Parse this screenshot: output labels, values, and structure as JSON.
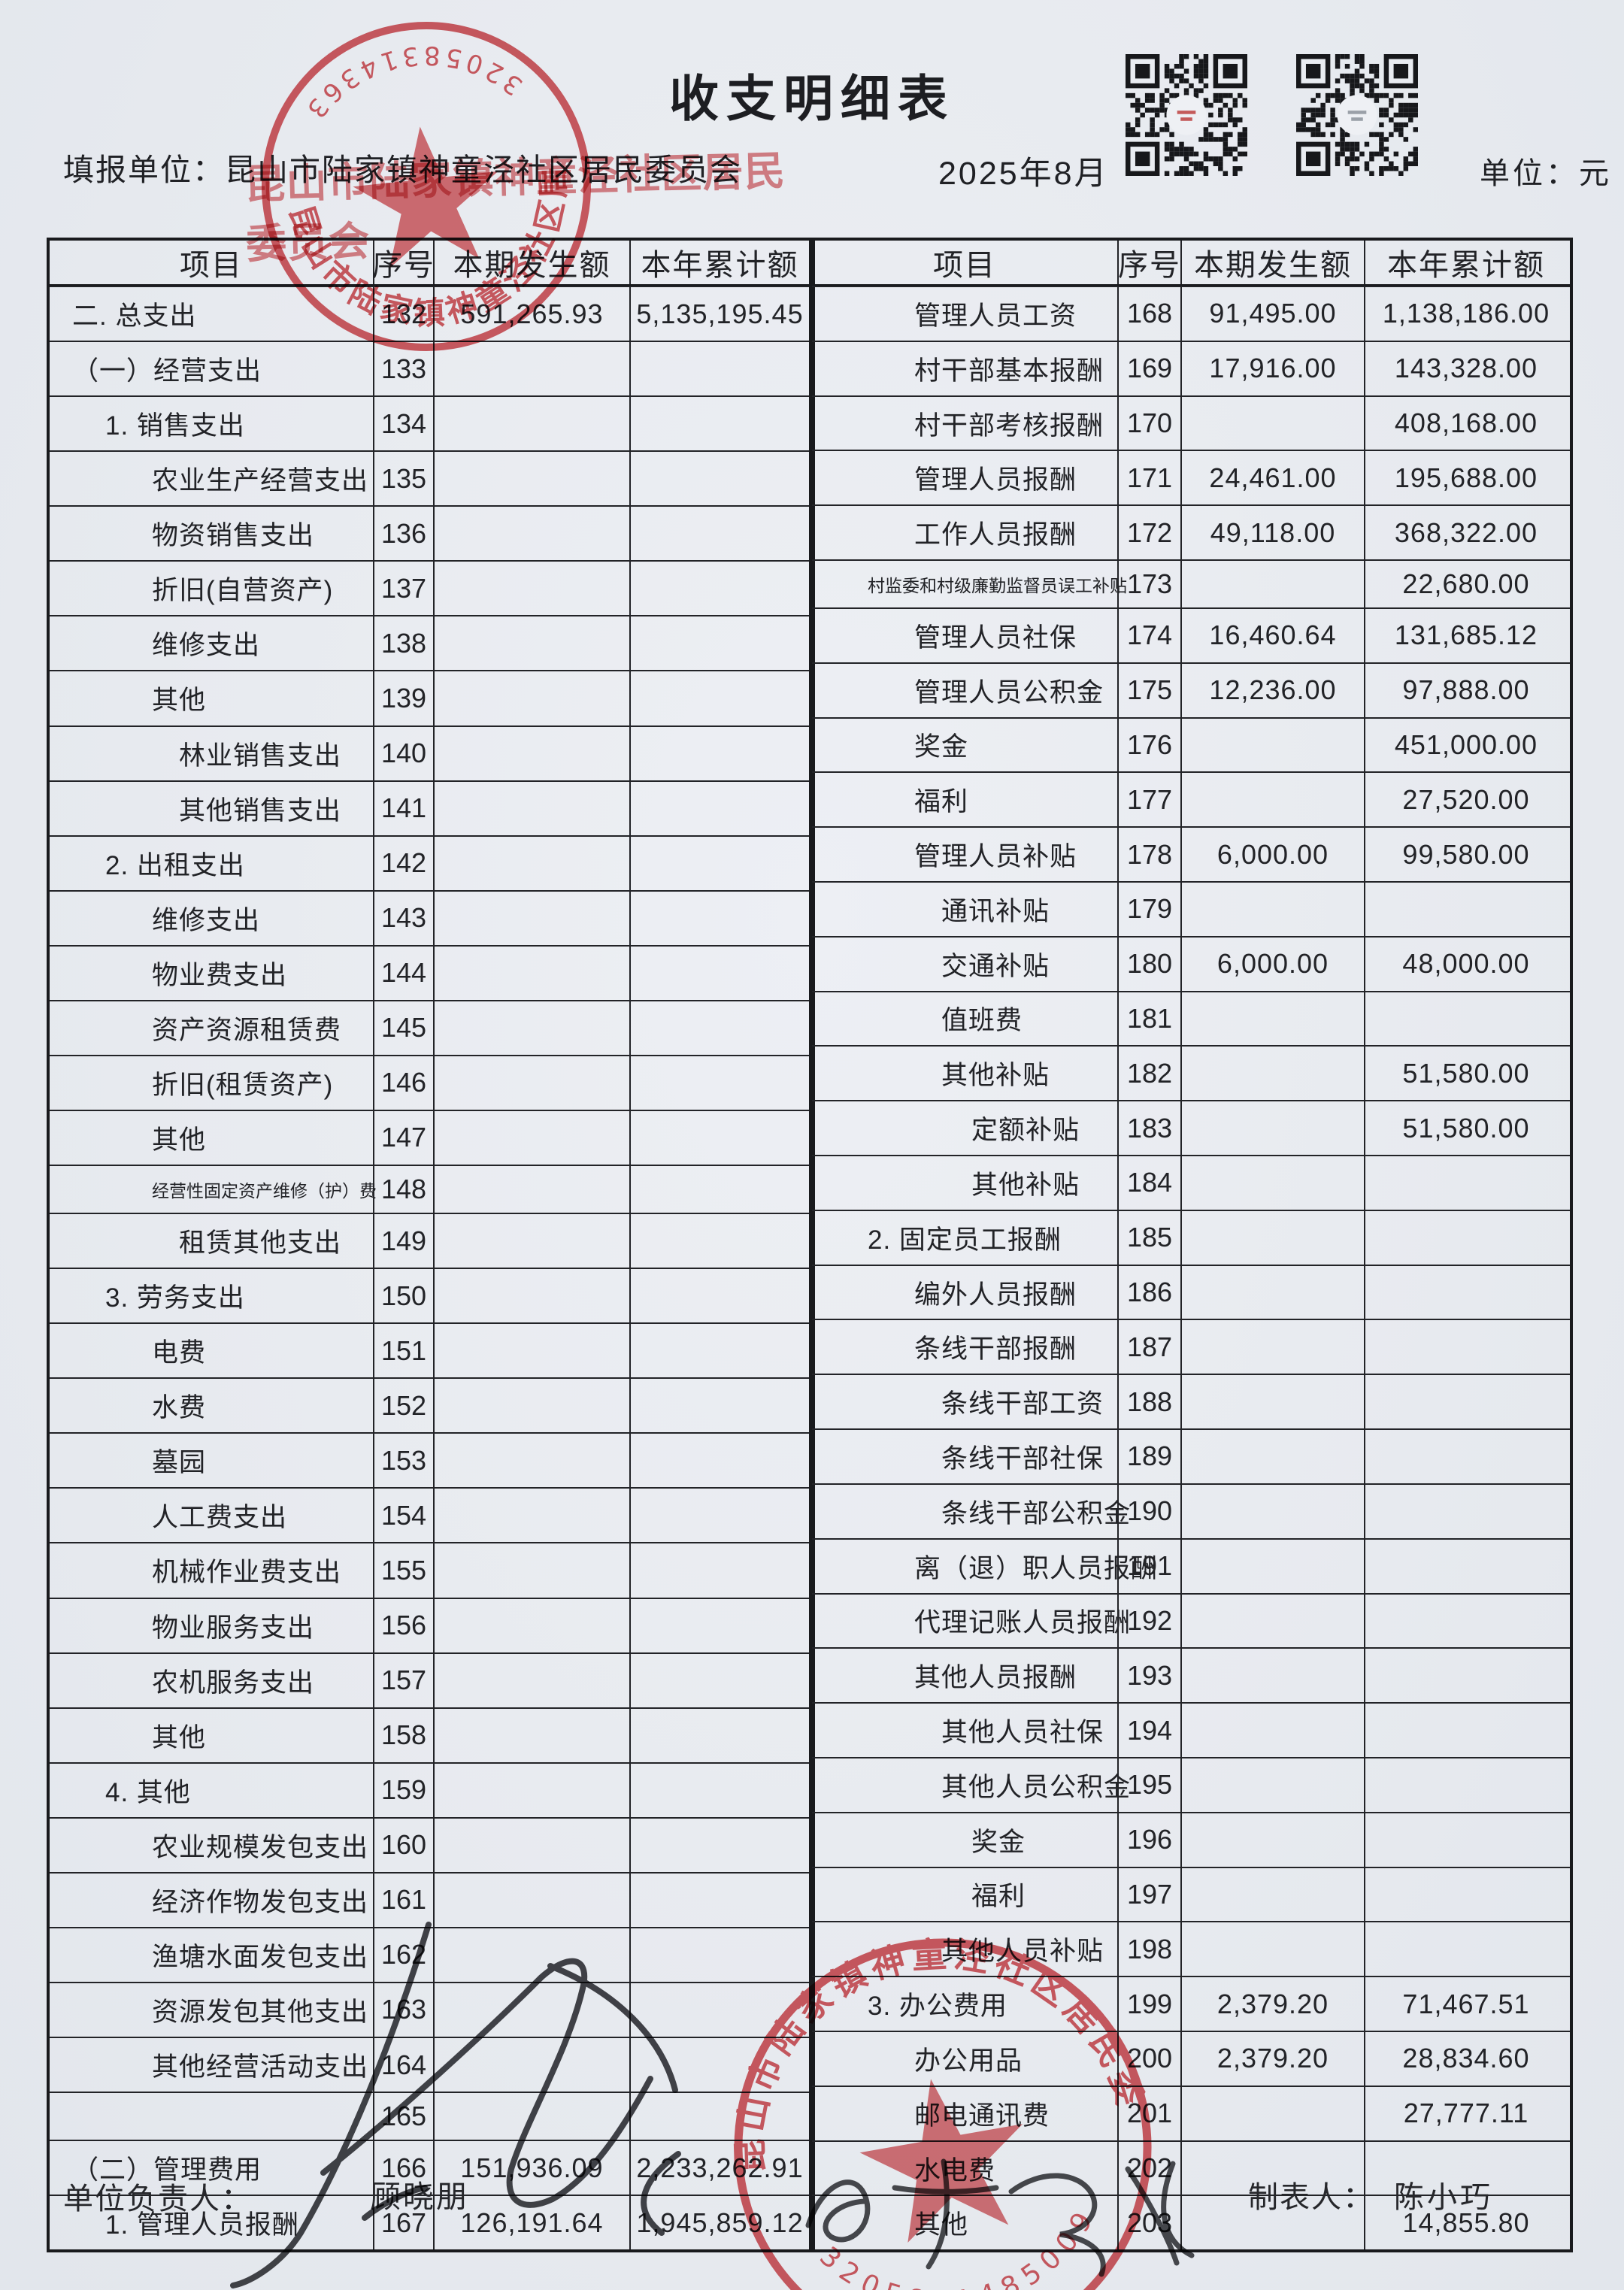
{
  "page": {
    "title": "收支明细表",
    "report_unit_label": "填报单位：",
    "report_unit": "昆山市陆家镇神童泾社区居民委员会",
    "period": "2025年8月",
    "unit_label": "单位：元"
  },
  "table": {
    "headers": [
      "项目",
      "序号",
      "本期发生额",
      "本年累计额"
    ],
    "left_rows": [
      {
        "item": "二. 总支出",
        "no": "132",
        "cur": "591,265.93",
        "ytd": "5,135,195.45",
        "lvl": 0
      },
      {
        "item": "（一）经营支出",
        "no": "133",
        "cur": "",
        "ytd": "",
        "lvl": 0
      },
      {
        "item": "1. 销售支出",
        "no": "134",
        "cur": "",
        "ytd": "",
        "lvl": 1
      },
      {
        "item": "农业生产经营支出",
        "no": "135",
        "cur": "",
        "ytd": "",
        "lvl": 2
      },
      {
        "item": "物资销售支出",
        "no": "136",
        "cur": "",
        "ytd": "",
        "lvl": 2
      },
      {
        "item": "折旧(自营资产)",
        "no": "137",
        "cur": "",
        "ytd": "",
        "lvl": 2
      },
      {
        "item": "维修支出",
        "no": "138",
        "cur": "",
        "ytd": "",
        "lvl": 2
      },
      {
        "item": "其他",
        "no": "139",
        "cur": "",
        "ytd": "",
        "lvl": 2
      },
      {
        "item": "林业销售支出",
        "no": "140",
        "cur": "",
        "ytd": "",
        "lvl": 3
      },
      {
        "item": "其他销售支出",
        "no": "141",
        "cur": "",
        "ytd": "",
        "lvl": 3
      },
      {
        "item": "2. 出租支出",
        "no": "142",
        "cur": "",
        "ytd": "",
        "lvl": 1
      },
      {
        "item": "维修支出",
        "no": "143",
        "cur": "",
        "ytd": "",
        "lvl": 2
      },
      {
        "item": "物业费支出",
        "no": "144",
        "cur": "",
        "ytd": "",
        "lvl": 2
      },
      {
        "item": "资产资源租赁费",
        "no": "145",
        "cur": "",
        "ytd": "",
        "lvl": 2
      },
      {
        "item": "折旧(租赁资产)",
        "no": "146",
        "cur": "",
        "ytd": "",
        "lvl": 2
      },
      {
        "item": "其他",
        "no": "147",
        "cur": "",
        "ytd": "",
        "lvl": 2
      },
      {
        "item": "经营性固定资产维修（护）费",
        "no": "148",
        "cur": "",
        "ytd": "",
        "lvl": 2,
        "small": true
      },
      {
        "item": "租赁其他支出",
        "no": "149",
        "cur": "",
        "ytd": "",
        "lvl": 3
      },
      {
        "item": "3. 劳务支出",
        "no": "150",
        "cur": "",
        "ytd": "",
        "lvl": 1
      },
      {
        "item": "电费",
        "no": "151",
        "cur": "",
        "ytd": "",
        "lvl": 2
      },
      {
        "item": "水费",
        "no": "152",
        "cur": "",
        "ytd": "",
        "lvl": 2
      },
      {
        "item": "墓园",
        "no": "153",
        "cur": "",
        "ytd": "",
        "lvl": 2
      },
      {
        "item": "人工费支出",
        "no": "154",
        "cur": "",
        "ytd": "",
        "lvl": 2
      },
      {
        "item": "机械作业费支出",
        "no": "155",
        "cur": "",
        "ytd": "",
        "lvl": 2
      },
      {
        "item": "物业服务支出",
        "no": "156",
        "cur": "",
        "ytd": "",
        "lvl": 2
      },
      {
        "item": "农机服务支出",
        "no": "157",
        "cur": "",
        "ytd": "",
        "lvl": 2
      },
      {
        "item": "其他",
        "no": "158",
        "cur": "",
        "ytd": "",
        "lvl": 2
      },
      {
        "item": "4. 其他",
        "no": "159",
        "cur": "",
        "ytd": "",
        "lvl": 1
      },
      {
        "item": "农业规模发包支出",
        "no": "160",
        "cur": "",
        "ytd": "",
        "lvl": 2
      },
      {
        "item": "经济作物发包支出",
        "no": "161",
        "cur": "",
        "ytd": "",
        "lvl": 2
      },
      {
        "item": "渔塘水面发包支出",
        "no": "162",
        "cur": "",
        "ytd": "",
        "lvl": 2
      },
      {
        "item": "资源发包其他支出",
        "no": "163",
        "cur": "",
        "ytd": "",
        "lvl": 2
      },
      {
        "item": "其他经营活动支出",
        "no": "164",
        "cur": "",
        "ytd": "",
        "lvl": 2
      },
      {
        "item": "",
        "no": "165",
        "cur": "",
        "ytd": "",
        "lvl": 0
      },
      {
        "item": "（二）管理费用",
        "no": "166",
        "cur": "151,936.09",
        "ytd": "2,233,262.91",
        "lvl": 0
      },
      {
        "item": "1. 管理人员报酬",
        "no": "167",
        "cur": "126,191.64",
        "ytd": "1,945,859.12",
        "lvl": 1
      }
    ],
    "right_rows": [
      {
        "item": "管理人员工资",
        "no": "168",
        "cur": "91,495.00",
        "ytd": "1,138,186.00",
        "lvl": 2
      },
      {
        "item": "村干部基本报酬",
        "no": "169",
        "cur": "17,916.00",
        "ytd": "143,328.00",
        "lvl": 2
      },
      {
        "item": "村干部考核报酬",
        "no": "170",
        "cur": "",
        "ytd": "408,168.00",
        "lvl": 2
      },
      {
        "item": "管理人员报酬",
        "no": "171",
        "cur": "24,461.00",
        "ytd": "195,688.00",
        "lvl": 2
      },
      {
        "item": "工作人员报酬",
        "no": "172",
        "cur": "49,118.00",
        "ytd": "368,322.00",
        "lvl": 2
      },
      {
        "item": "村监委和村级廉勤监督员误工补贴",
        "no": "173",
        "cur": "",
        "ytd": "22,680.00",
        "lvl": 1,
        "small": true
      },
      {
        "item": "管理人员社保",
        "no": "174",
        "cur": "16,460.64",
        "ytd": "131,685.12",
        "lvl": 2
      },
      {
        "item": "管理人员公积金",
        "no": "175",
        "cur": "12,236.00",
        "ytd": "97,888.00",
        "lvl": 2
      },
      {
        "item": "奖金",
        "no": "176",
        "cur": "",
        "ytd": "451,000.00",
        "lvl": 2
      },
      {
        "item": "福利",
        "no": "177",
        "cur": "",
        "ytd": "27,520.00",
        "lvl": 2
      },
      {
        "item": "管理人员补贴",
        "no": "178",
        "cur": "6,000.00",
        "ytd": "99,580.00",
        "lvl": 2
      },
      {
        "item": "通讯补贴",
        "no": "179",
        "cur": "",
        "ytd": "",
        "lvl": 3
      },
      {
        "item": "交通补贴",
        "no": "180",
        "cur": "6,000.00",
        "ytd": "48,000.00",
        "lvl": 3
      },
      {
        "item": "值班费",
        "no": "181",
        "cur": "",
        "ytd": "",
        "lvl": 3
      },
      {
        "item": "其他补贴",
        "no": "182",
        "cur": "",
        "ytd": "51,580.00",
        "lvl": 3
      },
      {
        "item": "定额补贴",
        "no": "183",
        "cur": "",
        "ytd": "51,580.00",
        "lvl": 4
      },
      {
        "item": "其他补贴",
        "no": "184",
        "cur": "",
        "ytd": "",
        "lvl": 4
      },
      {
        "item": "2. 固定员工报酬",
        "no": "185",
        "cur": "",
        "ytd": "",
        "lvl": 1
      },
      {
        "item": "编外人员报酬",
        "no": "186",
        "cur": "",
        "ytd": "",
        "lvl": 2
      },
      {
        "item": "条线干部报酬",
        "no": "187",
        "cur": "",
        "ytd": "",
        "lvl": 2
      },
      {
        "item": "条线干部工资",
        "no": "188",
        "cur": "",
        "ytd": "",
        "lvl": 3
      },
      {
        "item": "条线干部社保",
        "no": "189",
        "cur": "",
        "ytd": "",
        "lvl": 3
      },
      {
        "item": "条线干部公积金",
        "no": "190",
        "cur": "",
        "ytd": "",
        "lvl": 3
      },
      {
        "item": "离（退）职人员报酬",
        "no": "191",
        "cur": "",
        "ytd": "",
        "lvl": 2
      },
      {
        "item": "代理记账人员报酬",
        "no": "192",
        "cur": "",
        "ytd": "",
        "lvl": 2
      },
      {
        "item": "其他人员报酬",
        "no": "193",
        "cur": "",
        "ytd": "",
        "lvl": 2
      },
      {
        "item": "其他人员社保",
        "no": "194",
        "cur": "",
        "ytd": "",
        "lvl": 3
      },
      {
        "item": "其他人员公积金",
        "no": "195",
        "cur": "",
        "ytd": "",
        "lvl": 3
      },
      {
        "item": "奖金",
        "no": "196",
        "cur": "",
        "ytd": "",
        "lvl": 4
      },
      {
        "item": "福利",
        "no": "197",
        "cur": "",
        "ytd": "",
        "lvl": 4
      },
      {
        "item": "其他人员补贴",
        "no": "198",
        "cur": "",
        "ytd": "",
        "lvl": 3
      },
      {
        "item": "3. 办公费用",
        "no": "199",
        "cur": "2,379.20",
        "ytd": "71,467.51",
        "lvl": 1
      },
      {
        "item": "办公用品",
        "no": "200",
        "cur": "2,379.20",
        "ytd": "28,834.60",
        "lvl": 2
      },
      {
        "item": "邮电通讯费",
        "no": "201",
        "cur": "",
        "ytd": "27,777.11",
        "lvl": 2
      },
      {
        "item": "水电费",
        "no": "202",
        "cur": "",
        "ytd": "",
        "lvl": 2
      },
      {
        "item": "其他",
        "no": "203",
        "cur": "",
        "ytd": "14,855.80",
        "lvl": 2
      }
    ]
  },
  "footer": {
    "responsible_label": "单位负责人：",
    "responsible_name": "顾晓朋",
    "preparer_label": "制表人：",
    "preparer_name": "陈小巧"
  },
  "seals": {
    "top": {
      "org": "昆山市陆家镇神童泾社区居民委员会",
      "code": "3205831436339"
    },
    "bottom": {
      "org": "昆山市陆家镇神童泾社区居民委员会",
      "code": "3205831485009"
    }
  },
  "colors": {
    "seal_red": "#cf3a40",
    "paper": "#e9ecf1",
    "ink": "#26272b"
  }
}
